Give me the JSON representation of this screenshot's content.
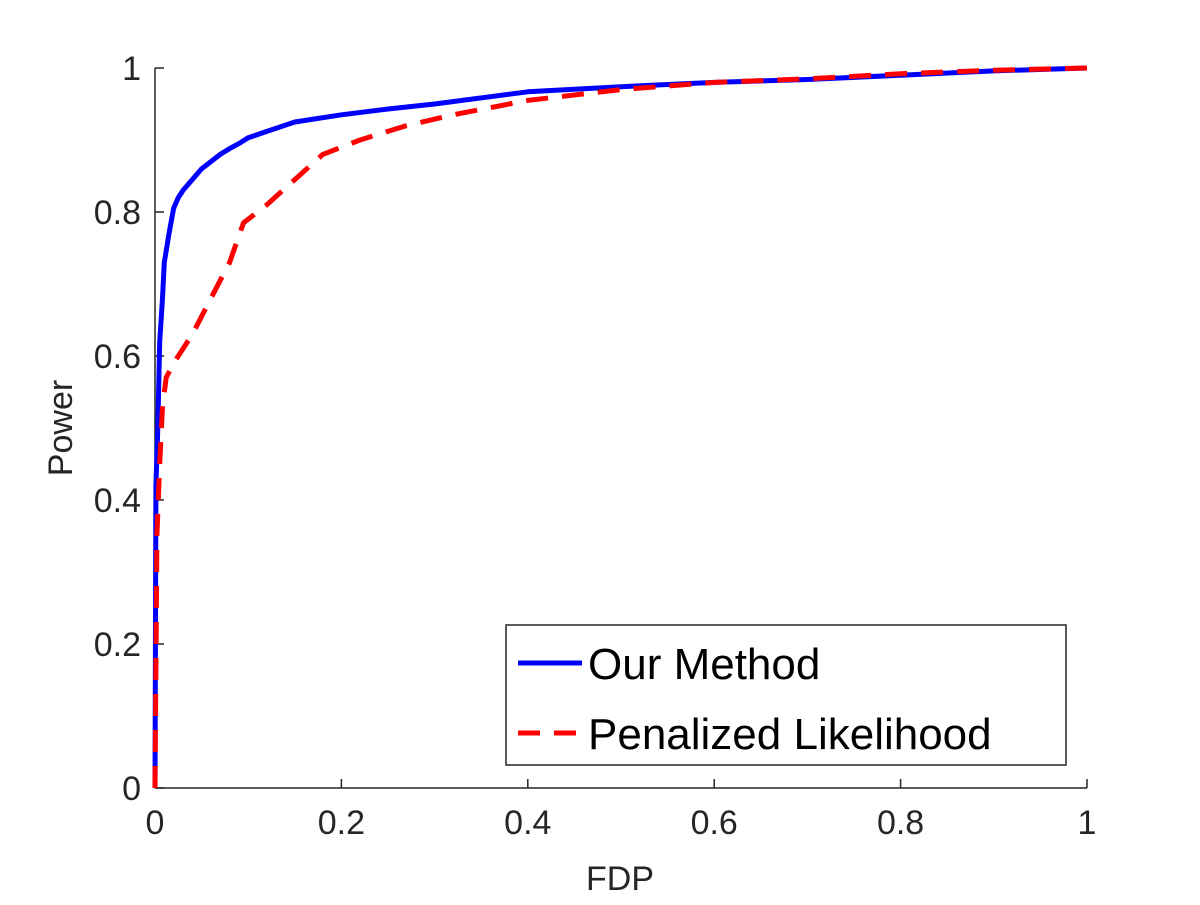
{
  "chart_data": {
    "type": "line",
    "xlabel": "FDP",
    "ylabel": "Power",
    "xlim": [
      0,
      1
    ],
    "ylim": [
      0,
      1
    ],
    "xticks": [
      0,
      0.2,
      0.4,
      0.6,
      0.8,
      1
    ],
    "yticks": [
      0,
      0.2,
      0.4,
      0.6,
      0.8,
      1
    ],
    "xtick_labels": [
      "0",
      "0.2",
      "0.4",
      "0.6",
      "0.8",
      "1"
    ],
    "ytick_labels": [
      "0",
      "0.2",
      "0.4",
      "0.6",
      "0.8",
      "1"
    ],
    "grid": false,
    "legend_position": "bottom-right",
    "series": [
      {
        "name": "Our Method",
        "color": "#0000ff",
        "style": "solid",
        "x": [
          0,
          0.001,
          0.003,
          0.005,
          0.008,
          0.01,
          0.015,
          0.02,
          0.025,
          0.03,
          0.04,
          0.05,
          0.06,
          0.07,
          0.08,
          0.09,
          0.1,
          0.12,
          0.15,
          0.2,
          0.25,
          0.3,
          0.4,
          0.5,
          0.6,
          0.7,
          0.8,
          0.9,
          1.0
        ],
        "y": [
          0,
          0.42,
          0.5,
          0.62,
          0.68,
          0.73,
          0.77,
          0.805,
          0.82,
          0.83,
          0.845,
          0.86,
          0.87,
          0.88,
          0.888,
          0.895,
          0.903,
          0.912,
          0.925,
          0.935,
          0.943,
          0.95,
          0.967,
          0.974,
          0.98,
          0.984,
          0.99,
          0.996,
          1.0
        ]
      },
      {
        "name": "Penalized Likelihood",
        "color": "#ff0000",
        "style": "dashed",
        "x": [
          0,
          0.002,
          0.005,
          0.008,
          0.012,
          0.02,
          0.04,
          0.06,
          0.08,
          0.095,
          0.12,
          0.15,
          0.18,
          0.22,
          0.27,
          0.32,
          0.4,
          0.5,
          0.6,
          0.7,
          0.8,
          0.9,
          1.0
        ],
        "y": [
          0,
          0.35,
          0.45,
          0.53,
          0.57,
          0.59,
          0.63,
          0.68,
          0.73,
          0.785,
          0.81,
          0.845,
          0.88,
          0.9,
          0.92,
          0.935,
          0.955,
          0.97,
          0.98,
          0.985,
          0.992,
          0.997,
          1.0
        ]
      }
    ]
  }
}
